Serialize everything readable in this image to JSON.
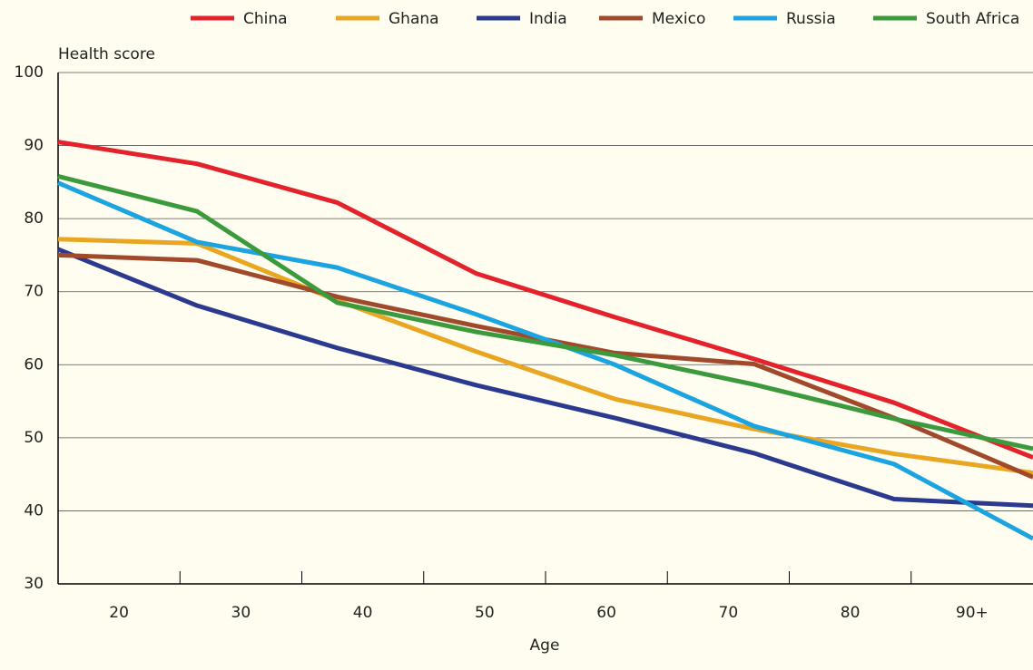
{
  "chart_data": {
    "type": "line",
    "y_label": "Health score",
    "x_label": "Age",
    "x": [
      15,
      26.4,
      37.9,
      49.3,
      60.7,
      72.1,
      83.6,
      95
    ],
    "xlim": [
      15,
      95
    ],
    "xticks": [
      20,
      30,
      40,
      50,
      60,
      70,
      80,
      {
        "value": 90,
        "label": "90+"
      }
    ],
    "x_tick_marks": [
      25,
      35,
      45,
      55,
      65,
      75,
      85
    ],
    "ylim": [
      30,
      100
    ],
    "yticks": [
      30,
      40,
      50,
      60,
      70,
      80,
      90,
      100
    ],
    "grid": true,
    "legend": "top",
    "series": [
      {
        "name": "China",
        "color": "#e3222b",
        "values": [
          90.5,
          87.5,
          82.2,
          72.5,
          66.5,
          60.8,
          54.8,
          47.3
        ]
      },
      {
        "name": "Ghana",
        "color": "#e9a623",
        "values": [
          77.2,
          76.6,
          68.8,
          61.8,
          55.3,
          51.2,
          47.8,
          45.2
        ]
      },
      {
        "name": "India",
        "color": "#2b3a8f",
        "values": [
          75.8,
          68.1,
          62.3,
          57.2,
          52.7,
          47.9,
          41.6,
          40.7
        ]
      },
      {
        "name": "Mexico",
        "color": "#a04a2b",
        "values": [
          75.0,
          74.3,
          69.3,
          65.3,
          61.6,
          60.1,
          52.7,
          44.6
        ]
      },
      {
        "name": "Russia",
        "color": "#1ca4e1",
        "values": [
          84.9,
          76.8,
          73.3,
          66.9,
          60.0,
          51.6,
          46.4,
          36.2
        ]
      },
      {
        "name": "South Africa",
        "color": "#3b9a3c",
        "values": [
          85.8,
          81.0,
          68.5,
          64.5,
          61.3,
          57.3,
          52.6,
          48.5
        ]
      }
    ]
  }
}
